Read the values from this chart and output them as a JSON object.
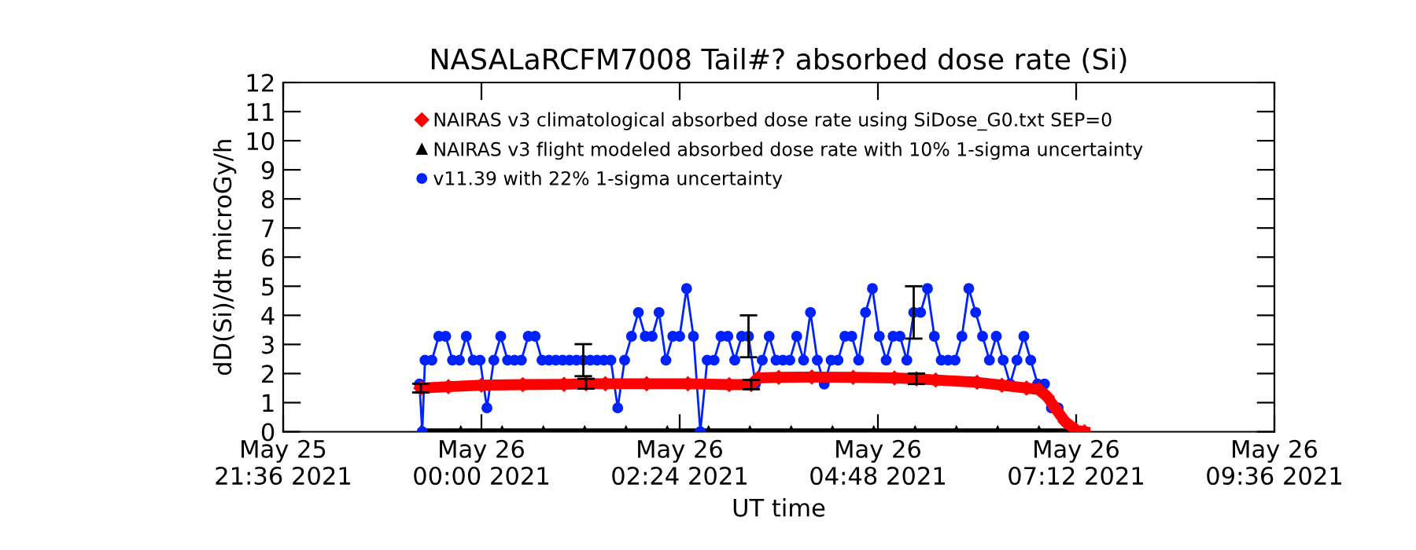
{
  "chart_data": {
    "type": "line",
    "title": "NASALaRCFM7008 Tail#? absorbed dose rate (Si)",
    "xlabel": "UT time",
    "ylabel": "dD(Si)/dt microGy/h",
    "xlim": [
      "2021-05-25T21:36",
      "2021-05-26T09:36"
    ],
    "xticks": [
      {
        "value": "2021-05-25T21:36",
        "label": "May 25\n21:36 2021"
      },
      {
        "value": "2021-05-26T00:00",
        "label": "May 26\n00:00 2021"
      },
      {
        "value": "2021-05-26T02:24",
        "label": "May 26\n02:24 2021"
      },
      {
        "value": "2021-05-26T04:48",
        "label": "May 26\n04:48 2021"
      },
      {
        "value": "2021-05-26T07:12",
        "label": "May 26\n07:12 2021"
      },
      {
        "value": "2021-05-26T09:36",
        "label": "May 26\n09:36 2021"
      }
    ],
    "ylim": [
      0,
      12
    ],
    "yticks": [
      0,
      1,
      2,
      3,
      4,
      5,
      6,
      7,
      8,
      9,
      10,
      11,
      12
    ],
    "legend": "top",
    "series": [
      {
        "name": "NAIRAS v3 climatological absorbed dose rate using SiDose_G0.txt SEP=0",
        "color": "#ff0000",
        "marker": "diamond",
        "x": [
          "2021-05-25T23:16",
          "2021-05-25T23:36",
          "2021-05-26T00:00",
          "2021-05-26T00:30",
          "2021-05-26T01:00",
          "2021-05-26T01:16",
          "2021-05-26T01:30",
          "2021-05-26T02:00",
          "2021-05-26T02:30",
          "2021-05-26T03:00",
          "2021-05-26T03:16",
          "2021-05-26T03:21",
          "2021-05-26T03:36",
          "2021-05-26T04:00",
          "2021-05-26T04:30",
          "2021-05-26T05:00",
          "2021-05-26T05:16",
          "2021-05-26T05:30",
          "2021-05-26T06:00",
          "2021-05-26T06:18",
          "2021-05-26T06:36",
          "2021-05-26T06:45",
          "2021-05-26T06:51",
          "2021-05-26T06:57",
          "2021-05-26T07:04",
          "2021-05-26T07:12",
          "2021-05-26T07:18"
        ],
        "values": [
          1.5,
          1.55,
          1.6,
          1.62,
          1.63,
          1.65,
          1.65,
          1.65,
          1.65,
          1.62,
          1.62,
          1.85,
          1.87,
          1.88,
          1.87,
          1.85,
          1.82,
          1.78,
          1.7,
          1.6,
          1.5,
          1.45,
          1.2,
          0.8,
          0.35,
          0.05,
          0
        ],
        "errors": [
          0.15,
          null,
          null,
          null,
          null,
          0.17,
          null,
          null,
          null,
          null,
          0.16,
          null,
          null,
          null,
          null,
          null,
          0.18,
          null,
          null,
          null,
          null,
          null,
          null,
          null,
          null,
          null,
          null
        ]
      },
      {
        "name": "NAIRAS v3 flight modeled absorbed dose rate with 10% 1-sigma uncertainty",
        "color": "#000000",
        "marker": "triangle",
        "x": [
          "2021-05-25T23:16",
          "2021-05-25T23:45",
          "2021-05-26T00:15",
          "2021-05-26T00:45",
          "2021-05-26T01:15",
          "2021-05-26T01:45",
          "2021-05-26T02:15",
          "2021-05-26T02:45",
          "2021-05-26T03:15",
          "2021-05-26T03:45",
          "2021-05-26T04:15",
          "2021-05-26T04:45",
          "2021-05-26T05:15",
          "2021-05-26T05:45",
          "2021-05-26T06:15",
          "2021-05-26T06:45",
          "2021-05-26T07:18"
        ],
        "values": [
          0,
          0,
          0,
          0,
          0,
          0,
          0,
          0,
          0,
          0,
          0,
          0,
          0,
          0,
          0,
          0,
          0
        ]
      },
      {
        "name": "v11.39 with 22% 1-sigma uncertainty",
        "color": "#0022ff",
        "marker": "circle",
        "x": [
          "2021-05-25T23:15",
          "2021-05-25T23:17",
          "2021-05-25T23:19",
          "2021-05-25T23:24",
          "2021-05-25T23:29",
          "2021-05-25T23:34",
          "2021-05-25T23:39",
          "2021-05-25T23:44",
          "2021-05-25T23:49",
          "2021-05-25T23:54",
          "2021-05-25T23:59",
          "2021-05-26T00:04",
          "2021-05-26T00:09",
          "2021-05-26T00:14",
          "2021-05-26T00:19",
          "2021-05-26T00:24",
          "2021-05-26T00:29",
          "2021-05-26T00:34",
          "2021-05-26T00:39",
          "2021-05-26T00:44",
          "2021-05-26T00:49",
          "2021-05-26T00:54",
          "2021-05-26T00:59",
          "2021-05-26T01:04",
          "2021-05-26T01:09",
          "2021-05-26T01:14",
          "2021-05-26T01:19",
          "2021-05-26T01:24",
          "2021-05-26T01:29",
          "2021-05-26T01:34",
          "2021-05-26T01:39",
          "2021-05-26T01:44",
          "2021-05-26T01:49",
          "2021-05-26T01:54",
          "2021-05-26T01:59",
          "2021-05-26T02:04",
          "2021-05-26T02:09",
          "2021-05-26T02:14",
          "2021-05-26T02:19",
          "2021-05-26T02:24",
          "2021-05-26T02:29",
          "2021-05-26T02:34",
          "2021-05-26T02:39",
          "2021-05-26T02:44",
          "2021-05-26T02:49",
          "2021-05-26T02:54",
          "2021-05-26T02:59",
          "2021-05-26T03:04",
          "2021-05-26T03:09",
          "2021-05-26T03:14",
          "2021-05-26T03:19",
          "2021-05-26T03:24",
          "2021-05-26T03:29",
          "2021-05-26T03:34",
          "2021-05-26T03:39",
          "2021-05-26T03:44",
          "2021-05-26T03:49",
          "2021-05-26T03:54",
          "2021-05-26T03:59",
          "2021-05-26T04:04",
          "2021-05-26T04:09",
          "2021-05-26T04:14",
          "2021-05-26T04:19",
          "2021-05-26T04:24",
          "2021-05-26T04:29",
          "2021-05-26T04:34",
          "2021-05-26T04:39",
          "2021-05-26T04:44",
          "2021-05-26T04:49",
          "2021-05-26T04:54",
          "2021-05-26T04:59",
          "2021-05-26T05:04",
          "2021-05-26T05:09",
          "2021-05-26T05:14",
          "2021-05-26T05:19",
          "2021-05-26T05:24",
          "2021-05-26T05:29",
          "2021-05-26T05:34",
          "2021-05-26T05:39",
          "2021-05-26T05:44",
          "2021-05-26T05:49",
          "2021-05-26T05:54",
          "2021-05-26T05:59",
          "2021-05-26T06:04",
          "2021-05-26T06:09",
          "2021-05-26T06:14",
          "2021-05-26T06:19",
          "2021-05-26T06:24",
          "2021-05-26T06:29",
          "2021-05-26T06:34",
          "2021-05-26T06:39",
          "2021-05-26T06:44",
          "2021-05-26T06:49",
          "2021-05-26T06:54",
          "2021-05-26T06:59"
        ],
        "values": [
          1.64,
          0,
          2.46,
          2.46,
          3.28,
          3.28,
          2.46,
          2.46,
          3.28,
          2.46,
          2.46,
          0.82,
          2.46,
          3.28,
          2.46,
          2.46,
          2.46,
          3.28,
          3.28,
          2.46,
          2.46,
          2.46,
          2.46,
          2.46,
          2.46,
          2.46,
          2.46,
          2.46,
          2.46,
          2.46,
          0.82,
          2.46,
          3.28,
          4.1,
          3.28,
          3.28,
          4.1,
          2.46,
          3.28,
          3.28,
          4.92,
          3.28,
          0,
          2.46,
          2.46,
          3.28,
          3.28,
          2.46,
          3.28,
          3.28,
          1.64,
          2.46,
          3.28,
          2.46,
          2.46,
          2.46,
          3.28,
          2.46,
          4.1,
          2.46,
          1.64,
          2.46,
          2.46,
          3.28,
          3.28,
          2.46,
          4.1,
          4.92,
          3.28,
          2.46,
          3.28,
          3.28,
          2.46,
          4.1,
          4.1,
          4.92,
          3.28,
          2.46,
          2.46,
          2.46,
          3.28,
          4.92,
          4.1,
          3.28,
          2.46,
          3.28,
          2.46,
          1.64,
          2.46,
          3.28,
          2.46,
          1.64,
          1.64,
          0.82,
          0.82
        ],
        "errors": [
          null,
          null,
          null,
          null,
          null,
          null,
          null,
          null,
          null,
          null,
          null,
          null,
          null,
          null,
          null,
          null,
          null,
          null,
          null,
          null,
          null,
          null,
          null,
          null,
          null,
          0.55,
          null,
          null,
          null,
          null,
          null,
          null,
          null,
          null,
          null,
          null,
          null,
          null,
          null,
          null,
          null,
          null,
          null,
          null,
          null,
          null,
          null,
          null,
          null,
          0.72,
          null,
          null,
          null,
          null,
          null,
          null,
          null,
          null,
          null,
          null,
          null,
          null,
          null,
          null,
          null,
          null,
          null,
          null,
          null,
          null,
          null,
          null,
          null,
          0.9,
          null,
          null,
          null,
          null,
          null,
          null,
          null,
          null,
          null,
          null,
          null,
          null,
          null,
          null,
          null,
          null,
          null,
          null,
          null,
          null,
          null
        ]
      }
    ]
  }
}
